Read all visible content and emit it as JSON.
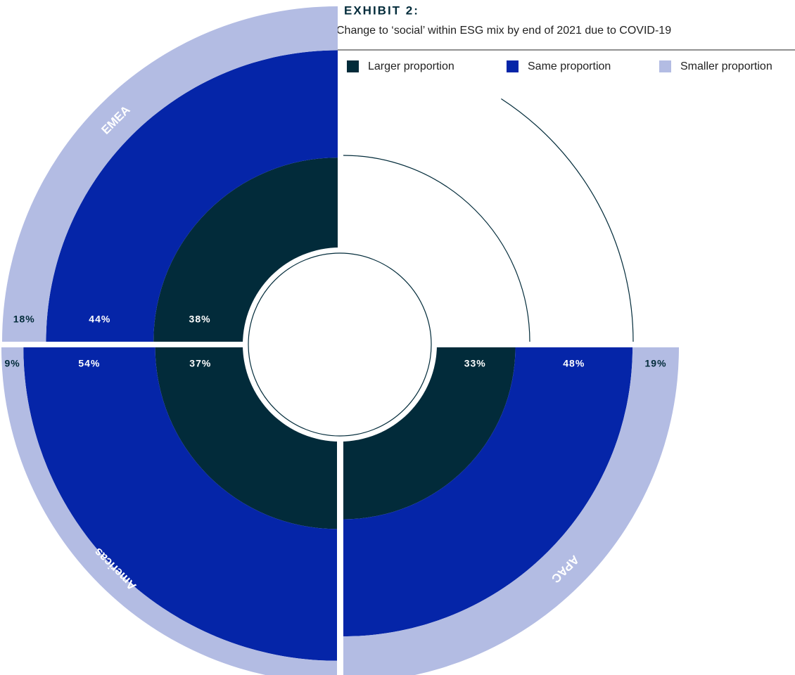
{
  "chart_data": {
    "type": "radial_stacked_bar",
    "title": "EXHIBIT 2:",
    "subtitle": "Change to ‘social’ within ESG mix by end of 2021 due to COVID-19",
    "categories": [
      "EMEA",
      "Americas",
      "APAC"
    ],
    "series": [
      {
        "name": "Larger proportion",
        "color": "#022b3a",
        "values": [
          38,
          37,
          33
        ],
        "value_labels": [
          "38%",
          "37%",
          "33%"
        ]
      },
      {
        "name": "Same proportion",
        "color": "#0525a8",
        "values": [
          44,
          54,
          48
        ],
        "value_labels": [
          "44%",
          "54%",
          "48%"
        ]
      },
      {
        "name": "Smaller proportion",
        "color": "#b3bce3",
        "values": [
          18,
          9,
          19
        ],
        "value_labels": [
          "18%",
          "9%",
          "19%"
        ]
      }
    ]
  }
}
